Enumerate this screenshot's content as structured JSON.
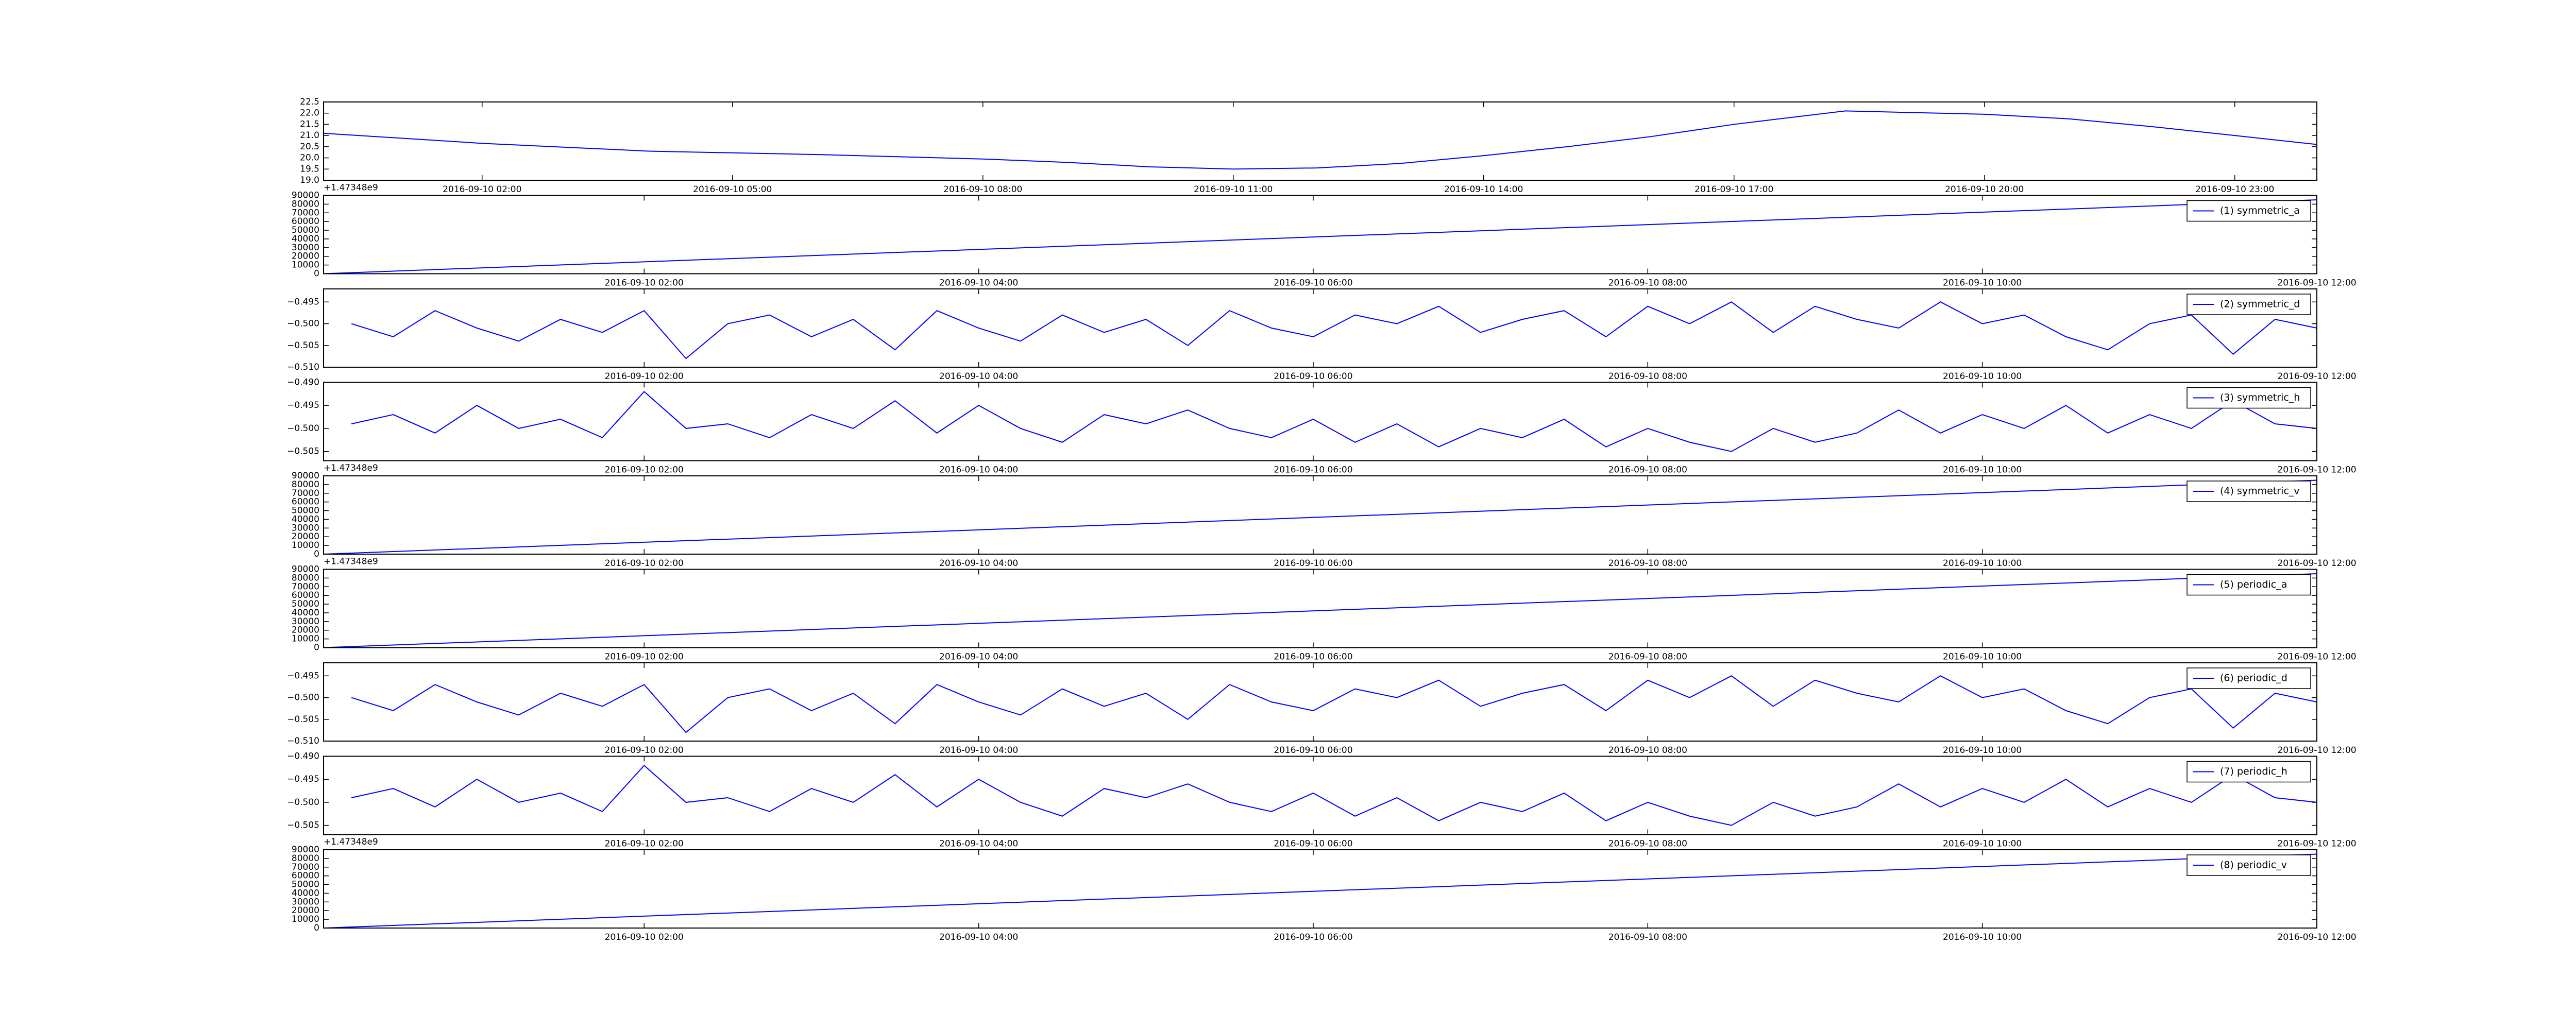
{
  "chart_data": [
    {
      "type": "line",
      "xlim": [
        "2016-09-10 00:06",
        "2016-09-10 23:59"
      ],
      "ylim": [
        19.0,
        22.5
      ],
      "yticks": [
        {
          "value": 19.0,
          "label": "19.0"
        },
        19.5,
        {
          "value": 20.0,
          "label": "20.0"
        },
        20.5,
        {
          "value": 21.0,
          "label": "21.0"
        },
        21.5,
        {
          "value": 22.0,
          "label": "22.0"
        },
        22.5
      ],
      "xticks": [
        "2016-09-10 02:00",
        "2016-09-10 05:00",
        "2016-09-10 08:00",
        "2016-09-10 11:00",
        "2016-09-10 14:00",
        "2016-09-10 17:00",
        "2016-09-10 20:00",
        "2016-09-10 23:00"
      ],
      "x": [
        "2016-09-10 00:06",
        "2016-09-10 02:00",
        "2016-09-10 04:00",
        "2016-09-10 06:00",
        "2016-09-10 08:00",
        "2016-09-10 09:00",
        "2016-09-10 10:00",
        "2016-09-10 11:00",
        "2016-09-10 12:00",
        "2016-09-10 13:00",
        "2016-09-10 14:00",
        "2016-09-10 15:00",
        "2016-09-10 16:00",
        "2016-09-10 17:00",
        "2016-09-10 18:20",
        "2016-09-10 20:00",
        "2016-09-10 21:00",
        "2016-09-10 22:00",
        "2016-09-10 23:00",
        "2016-09-10 23:59"
      ],
      "series": [
        {
          "color": "#0000ff",
          "values": [
            21.1,
            20.65,
            20.3,
            20.15,
            19.95,
            19.8,
            19.6,
            19.5,
            19.55,
            19.75,
            20.1,
            20.5,
            20.95,
            21.5,
            22.1,
            21.95,
            21.75,
            21.4,
            21.0,
            20.6
          ]
        }
      ]
    },
    {
      "type": "line",
      "y_offset_label": "+1.47348e9",
      "xlim": [
        "2016-09-10 00:05",
        "2016-09-10 12:00"
      ],
      "ylim": [
        0,
        90000
      ],
      "yticks": [
        0,
        10000,
        20000,
        30000,
        40000,
        50000,
        60000,
        70000,
        80000,
        90000
      ],
      "xticks": [
        "2016-09-10 02:00",
        "2016-09-10 04:00",
        "2016-09-10 06:00",
        "2016-09-10 08:00",
        "2016-09-10 10:00",
        "2016-09-10 12:00"
      ],
      "x": [
        "2016-09-10 00:05",
        "2016-09-10 12:00"
      ],
      "legend": "upper right",
      "series": [
        {
          "name": "(1) symmetric_a",
          "color": "#0000ff",
          "values": [
            0,
            85000
          ]
        }
      ]
    },
    {
      "type": "line",
      "xlim": [
        "2016-09-10 00:05",
        "2016-09-10 12:00"
      ],
      "ylim": [
        -0.51,
        -0.492
      ],
      "yticks": [
        {
          "value": -0.51,
          "label": "−0.510"
        },
        {
          "value": -0.505,
          "label": "−0.505"
        },
        {
          "value": -0.5,
          "label": "−0.500"
        },
        {
          "value": -0.495,
          "label": "−0.495"
        }
      ],
      "xticks": [
        "2016-09-10 02:00",
        "2016-09-10 04:00",
        "2016-09-10 06:00",
        "2016-09-10 08:00",
        "2016-09-10 10:00",
        "2016-09-10 12:00"
      ],
      "x": [
        "2016-09-10 00:15",
        "2016-09-10 00:30",
        "2016-09-10 00:45",
        "2016-09-10 01:00",
        "2016-09-10 01:15",
        "2016-09-10 01:30",
        "2016-09-10 01:45",
        "2016-09-10 02:00",
        "2016-09-10 02:15",
        "2016-09-10 02:30",
        "2016-09-10 02:45",
        "2016-09-10 03:00",
        "2016-09-10 03:15",
        "2016-09-10 03:30",
        "2016-09-10 03:45",
        "2016-09-10 04:00",
        "2016-09-10 04:15",
        "2016-09-10 04:30",
        "2016-09-10 04:45",
        "2016-09-10 05:00",
        "2016-09-10 05:15",
        "2016-09-10 05:30",
        "2016-09-10 05:45",
        "2016-09-10 06:00",
        "2016-09-10 06:15",
        "2016-09-10 06:30",
        "2016-09-10 06:45",
        "2016-09-10 07:00",
        "2016-09-10 07:15",
        "2016-09-10 07:30",
        "2016-09-10 07:45",
        "2016-09-10 08:00",
        "2016-09-10 08:15",
        "2016-09-10 08:30",
        "2016-09-10 08:45",
        "2016-09-10 09:00",
        "2016-09-10 09:15",
        "2016-09-10 09:30",
        "2016-09-10 09:45",
        "2016-09-10 10:00",
        "2016-09-10 10:15",
        "2016-09-10 10:30",
        "2016-09-10 10:45",
        "2016-09-10 11:00",
        "2016-09-10 11:15",
        "2016-09-10 11:30",
        "2016-09-10 11:45",
        "2016-09-10 12:00"
      ],
      "legend": "upper right",
      "series": [
        {
          "name": "(2) symmetric_d",
          "color": "#0000ff",
          "values": [
            -0.5,
            -0.503,
            -0.497,
            -0.501,
            -0.504,
            -0.499,
            -0.502,
            -0.497,
            -0.508,
            -0.5,
            -0.498,
            -0.503,
            -0.499,
            -0.506,
            -0.497,
            -0.501,
            -0.504,
            -0.498,
            -0.502,
            -0.499,
            -0.505,
            -0.497,
            -0.501,
            -0.503,
            -0.498,
            -0.5,
            -0.496,
            -0.502,
            -0.499,
            -0.497,
            -0.503,
            -0.496,
            -0.5,
            -0.495,
            -0.502,
            -0.496,
            -0.499,
            -0.501,
            -0.495,
            -0.5,
            -0.498,
            -0.503,
            -0.506,
            -0.5,
            -0.498,
            -0.507,
            -0.499,
            -0.501
          ]
        }
      ]
    },
    {
      "type": "line",
      "xlim": [
        "2016-09-10 00:05",
        "2016-09-10 12:00"
      ],
      "ylim": [
        -0.507,
        -0.49
      ],
      "yticks": [
        {
          "value": -0.505,
          "label": "−0.505"
        },
        {
          "value": -0.5,
          "label": "−0.500"
        },
        {
          "value": -0.495,
          "label": "−0.495"
        },
        {
          "value": -0.49,
          "label": "−0.490"
        }
      ],
      "xticks": [
        "2016-09-10 02:00",
        "2016-09-10 04:00",
        "2016-09-10 06:00",
        "2016-09-10 08:00",
        "2016-09-10 10:00",
        "2016-09-10 12:00"
      ],
      "x": [
        "2016-09-10 00:15",
        "2016-09-10 00:30",
        "2016-09-10 00:45",
        "2016-09-10 01:00",
        "2016-09-10 01:15",
        "2016-09-10 01:30",
        "2016-09-10 01:45",
        "2016-09-10 02:00",
        "2016-09-10 02:15",
        "2016-09-10 02:30",
        "2016-09-10 02:45",
        "2016-09-10 03:00",
        "2016-09-10 03:15",
        "2016-09-10 03:30",
        "2016-09-10 03:45",
        "2016-09-10 04:00",
        "2016-09-10 04:15",
        "2016-09-10 04:30",
        "2016-09-10 04:45",
        "2016-09-10 05:00",
        "2016-09-10 05:15",
        "2016-09-10 05:30",
        "2016-09-10 05:45",
        "2016-09-10 06:00",
        "2016-09-10 06:15",
        "2016-09-10 06:30",
        "2016-09-10 06:45",
        "2016-09-10 07:00",
        "2016-09-10 07:15",
        "2016-09-10 07:30",
        "2016-09-10 07:45",
        "2016-09-10 08:00",
        "2016-09-10 08:15",
        "2016-09-10 08:30",
        "2016-09-10 08:45",
        "2016-09-10 09:00",
        "2016-09-10 09:15",
        "2016-09-10 09:30",
        "2016-09-10 09:45",
        "2016-09-10 10:00",
        "2016-09-10 10:15",
        "2016-09-10 10:30",
        "2016-09-10 10:45",
        "2016-09-10 11:00",
        "2016-09-10 11:15",
        "2016-09-10 11:30",
        "2016-09-10 11:45",
        "2016-09-10 12:00"
      ],
      "legend": "upper right",
      "series": [
        {
          "name": "(3) symmetric_h",
          "color": "#0000ff",
          "values": [
            -0.499,
            -0.497,
            -0.501,
            -0.495,
            -0.5,
            -0.498,
            -0.502,
            -0.492,
            -0.5,
            -0.499,
            -0.502,
            -0.497,
            -0.5,
            -0.494,
            -0.501,
            -0.495,
            -0.5,
            -0.503,
            -0.497,
            -0.499,
            -0.496,
            -0.5,
            -0.502,
            -0.498,
            -0.503,
            -0.499,
            -0.504,
            -0.5,
            -0.502,
            -0.498,
            -0.504,
            -0.5,
            -0.503,
            -0.505,
            -0.5,
            -0.503,
            -0.501,
            -0.496,
            -0.501,
            -0.497,
            -0.5,
            -0.495,
            -0.501,
            -0.497,
            -0.5,
            -0.494,
            -0.499,
            -0.5
          ]
        }
      ]
    },
    {
      "type": "line",
      "y_offset_label": "+1.47348e9",
      "xlim": [
        "2016-09-10 00:05",
        "2016-09-10 12:00"
      ],
      "ylim": [
        0,
        90000
      ],
      "yticks": [
        0,
        10000,
        20000,
        30000,
        40000,
        50000,
        60000,
        70000,
        80000,
        90000
      ],
      "xticks": [
        "2016-09-10 02:00",
        "2016-09-10 04:00",
        "2016-09-10 06:00",
        "2016-09-10 08:00",
        "2016-09-10 10:00",
        "2016-09-10 12:00"
      ],
      "x": [
        "2016-09-10 00:05",
        "2016-09-10 12:00"
      ],
      "legend": "upper right",
      "series": [
        {
          "name": "(4) symmetric_v",
          "color": "#0000ff",
          "values": [
            0,
            85000
          ]
        }
      ]
    },
    {
      "type": "line",
      "y_offset_label": "+1.47348e9",
      "xlim": [
        "2016-09-10 00:05",
        "2016-09-10 12:00"
      ],
      "ylim": [
        0,
        90000
      ],
      "yticks": [
        0,
        10000,
        20000,
        30000,
        40000,
        50000,
        60000,
        70000,
        80000,
        90000
      ],
      "xticks": [
        "2016-09-10 02:00",
        "2016-09-10 04:00",
        "2016-09-10 06:00",
        "2016-09-10 08:00",
        "2016-09-10 10:00",
        "2016-09-10 12:00"
      ],
      "x": [
        "2016-09-10 00:05",
        "2016-09-10 12:00"
      ],
      "legend": "upper right",
      "series": [
        {
          "name": "(5) periodic_a",
          "color": "#0000ff",
          "values": [
            0,
            85000
          ]
        }
      ]
    },
    {
      "type": "line",
      "xlim": [
        "2016-09-10 00:05",
        "2016-09-10 12:00"
      ],
      "ylim": [
        -0.51,
        -0.492
      ],
      "yticks": [
        {
          "value": -0.51,
          "label": "−0.510"
        },
        {
          "value": -0.505,
          "label": "−0.505"
        },
        {
          "value": -0.5,
          "label": "−0.500"
        },
        {
          "value": -0.495,
          "label": "−0.495"
        }
      ],
      "xticks": [
        "2016-09-10 02:00",
        "2016-09-10 04:00",
        "2016-09-10 06:00",
        "2016-09-10 08:00",
        "2016-09-10 10:00",
        "2016-09-10 12:00"
      ],
      "x": [
        "2016-09-10 00:15",
        "2016-09-10 00:30",
        "2016-09-10 00:45",
        "2016-09-10 01:00",
        "2016-09-10 01:15",
        "2016-09-10 01:30",
        "2016-09-10 01:45",
        "2016-09-10 02:00",
        "2016-09-10 02:15",
        "2016-09-10 02:30",
        "2016-09-10 02:45",
        "2016-09-10 03:00",
        "2016-09-10 03:15",
        "2016-09-10 03:30",
        "2016-09-10 03:45",
        "2016-09-10 04:00",
        "2016-09-10 04:15",
        "2016-09-10 04:30",
        "2016-09-10 04:45",
        "2016-09-10 05:00",
        "2016-09-10 05:15",
        "2016-09-10 05:30",
        "2016-09-10 05:45",
        "2016-09-10 06:00",
        "2016-09-10 06:15",
        "2016-09-10 06:30",
        "2016-09-10 06:45",
        "2016-09-10 07:00",
        "2016-09-10 07:15",
        "2016-09-10 07:30",
        "2016-09-10 07:45",
        "2016-09-10 08:00",
        "2016-09-10 08:15",
        "2016-09-10 08:30",
        "2016-09-10 08:45",
        "2016-09-10 09:00",
        "2016-09-10 09:15",
        "2016-09-10 09:30",
        "2016-09-10 09:45",
        "2016-09-10 10:00",
        "2016-09-10 10:15",
        "2016-09-10 10:30",
        "2016-09-10 10:45",
        "2016-09-10 11:00",
        "2016-09-10 11:15",
        "2016-09-10 11:30",
        "2016-09-10 11:45",
        "2016-09-10 12:00"
      ],
      "legend": "upper right",
      "series": [
        {
          "name": "(6) periodic_d",
          "color": "#0000ff",
          "values": [
            -0.5,
            -0.503,
            -0.497,
            -0.501,
            -0.504,
            -0.499,
            -0.502,
            -0.497,
            -0.508,
            -0.5,
            -0.498,
            -0.503,
            -0.499,
            -0.506,
            -0.497,
            -0.501,
            -0.504,
            -0.498,
            -0.502,
            -0.499,
            -0.505,
            -0.497,
            -0.501,
            -0.503,
            -0.498,
            -0.5,
            -0.496,
            -0.502,
            -0.499,
            -0.497,
            -0.503,
            -0.496,
            -0.5,
            -0.495,
            -0.502,
            -0.496,
            -0.499,
            -0.501,
            -0.495,
            -0.5,
            -0.498,
            -0.503,
            -0.506,
            -0.5,
            -0.498,
            -0.507,
            -0.499,
            -0.501
          ]
        }
      ]
    },
    {
      "type": "line",
      "xlim": [
        "2016-09-10 00:05",
        "2016-09-10 12:00"
      ],
      "ylim": [
        -0.507,
        -0.49
      ],
      "yticks": [
        {
          "value": -0.505,
          "label": "−0.505"
        },
        {
          "value": -0.5,
          "label": "−0.500"
        },
        {
          "value": -0.495,
          "label": "−0.495"
        },
        {
          "value": -0.49,
          "label": "−0.490"
        }
      ],
      "xticks": [
        "2016-09-10 02:00",
        "2016-09-10 04:00",
        "2016-09-10 06:00",
        "2016-09-10 08:00",
        "2016-09-10 10:00",
        "2016-09-10 12:00"
      ],
      "x": [
        "2016-09-10 00:15",
        "2016-09-10 00:30",
        "2016-09-10 00:45",
        "2016-09-10 01:00",
        "2016-09-10 01:15",
        "2016-09-10 01:30",
        "2016-09-10 01:45",
        "2016-09-10 02:00",
        "2016-09-10 02:15",
        "2016-09-10 02:30",
        "2016-09-10 02:45",
        "2016-09-10 03:00",
        "2016-09-10 03:15",
        "2016-09-10 03:30",
        "2016-09-10 03:45",
        "2016-09-10 04:00",
        "2016-09-10 04:15",
        "2016-09-10 04:30",
        "2016-09-10 04:45",
        "2016-09-10 05:00",
        "2016-09-10 05:15",
        "2016-09-10 05:30",
        "2016-09-10 05:45",
        "2016-09-10 06:00",
        "2016-09-10 06:15",
        "2016-09-10 06:30",
        "2016-09-10 06:45",
        "2016-09-10 07:00",
        "2016-09-10 07:15",
        "2016-09-10 07:30",
        "2016-09-10 07:45",
        "2016-09-10 08:00",
        "2016-09-10 08:15",
        "2016-09-10 08:30",
        "2016-09-10 08:45",
        "2016-09-10 09:00",
        "2016-09-10 09:15",
        "2016-09-10 09:30",
        "2016-09-10 09:45",
        "2016-09-10 10:00",
        "2016-09-10 10:15",
        "2016-09-10 10:30",
        "2016-09-10 10:45",
        "2016-09-10 11:00",
        "2016-09-10 11:15",
        "2016-09-10 11:30",
        "2016-09-10 11:45",
        "2016-09-10 12:00"
      ],
      "legend": "upper right",
      "series": [
        {
          "name": "(7) periodic_h",
          "color": "#0000ff",
          "values": [
            -0.499,
            -0.497,
            -0.501,
            -0.495,
            -0.5,
            -0.498,
            -0.502,
            -0.492,
            -0.5,
            -0.499,
            -0.502,
            -0.497,
            -0.5,
            -0.494,
            -0.501,
            -0.495,
            -0.5,
            -0.503,
            -0.497,
            -0.499,
            -0.496,
            -0.5,
            -0.502,
            -0.498,
            -0.503,
            -0.499,
            -0.504,
            -0.5,
            -0.502,
            -0.498,
            -0.504,
            -0.5,
            -0.503,
            -0.505,
            -0.5,
            -0.503,
            -0.501,
            -0.496,
            -0.501,
            -0.497,
            -0.5,
            -0.495,
            -0.501,
            -0.497,
            -0.5,
            -0.494,
            -0.499,
            -0.5
          ]
        }
      ]
    },
    {
      "type": "line",
      "y_offset_label": "+1.47348e9",
      "xlim": [
        "2016-09-10 00:05",
        "2016-09-10 12:00"
      ],
      "ylim": [
        0,
        90000
      ],
      "yticks": [
        0,
        10000,
        20000,
        30000,
        40000,
        50000,
        60000,
        70000,
        80000,
        90000
      ],
      "xticks": [
        "2016-09-10 02:00",
        "2016-09-10 04:00",
        "2016-09-10 06:00",
        "2016-09-10 08:00",
        "2016-09-10 10:00",
        "2016-09-10 12:00"
      ],
      "x": [
        "2016-09-10 00:05",
        "2016-09-10 12:00"
      ],
      "legend": "upper right",
      "series": [
        {
          "name": "(8) periodic_v",
          "color": "#0000ff",
          "values": [
            0,
            85000
          ]
        }
      ]
    }
  ]
}
